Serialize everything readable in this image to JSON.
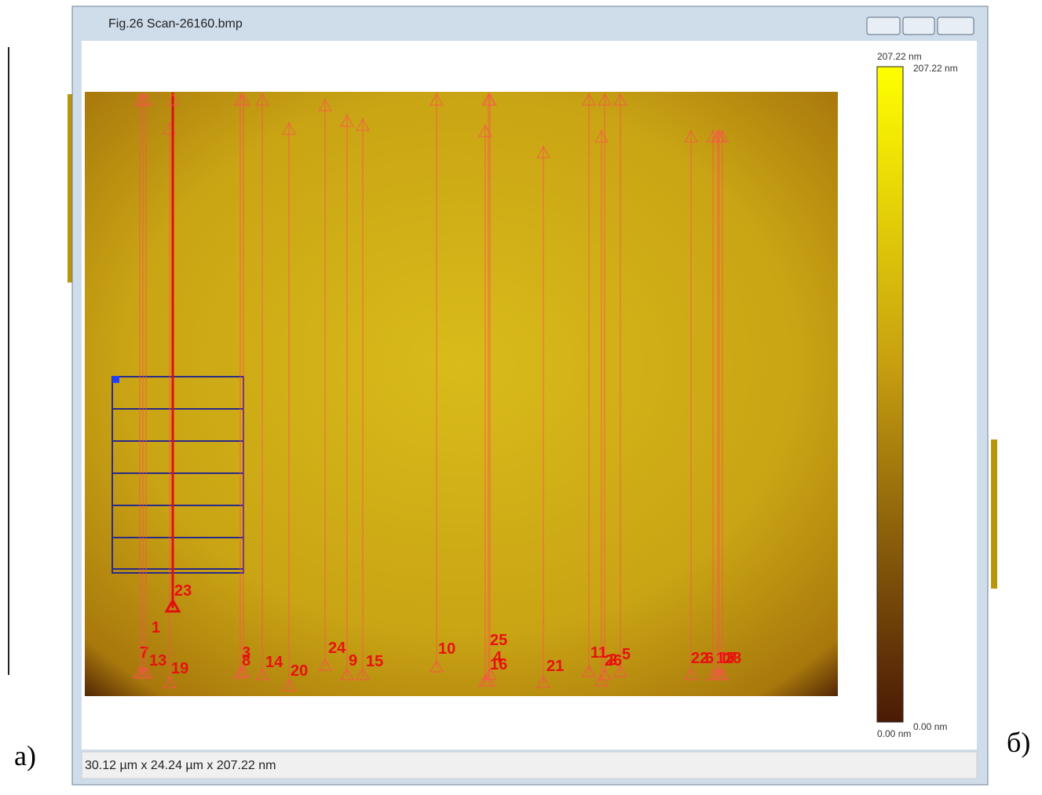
{
  "window": {
    "title": "Fig.26  Scan-26160.bmp",
    "status": "30.12 µm x 24.24 µm x 207.22 nm"
  },
  "colorbar": {
    "max_label": "207.22 nm",
    "max_marker": "207.22 nm",
    "min_label": "0.00 nm",
    "min_marker": "0.00 nm"
  },
  "markers": [
    "1",
    "2",
    "3",
    "4",
    "5",
    "6",
    "7",
    "8",
    "9",
    "10",
    "11",
    "12",
    "13",
    "14",
    "15",
    "16",
    "17",
    "18",
    "19",
    "20",
    "21",
    "22",
    "23",
    "24",
    "25",
    "26"
  ],
  "captions": {
    "left": "а)",
    "right": "б)"
  }
}
